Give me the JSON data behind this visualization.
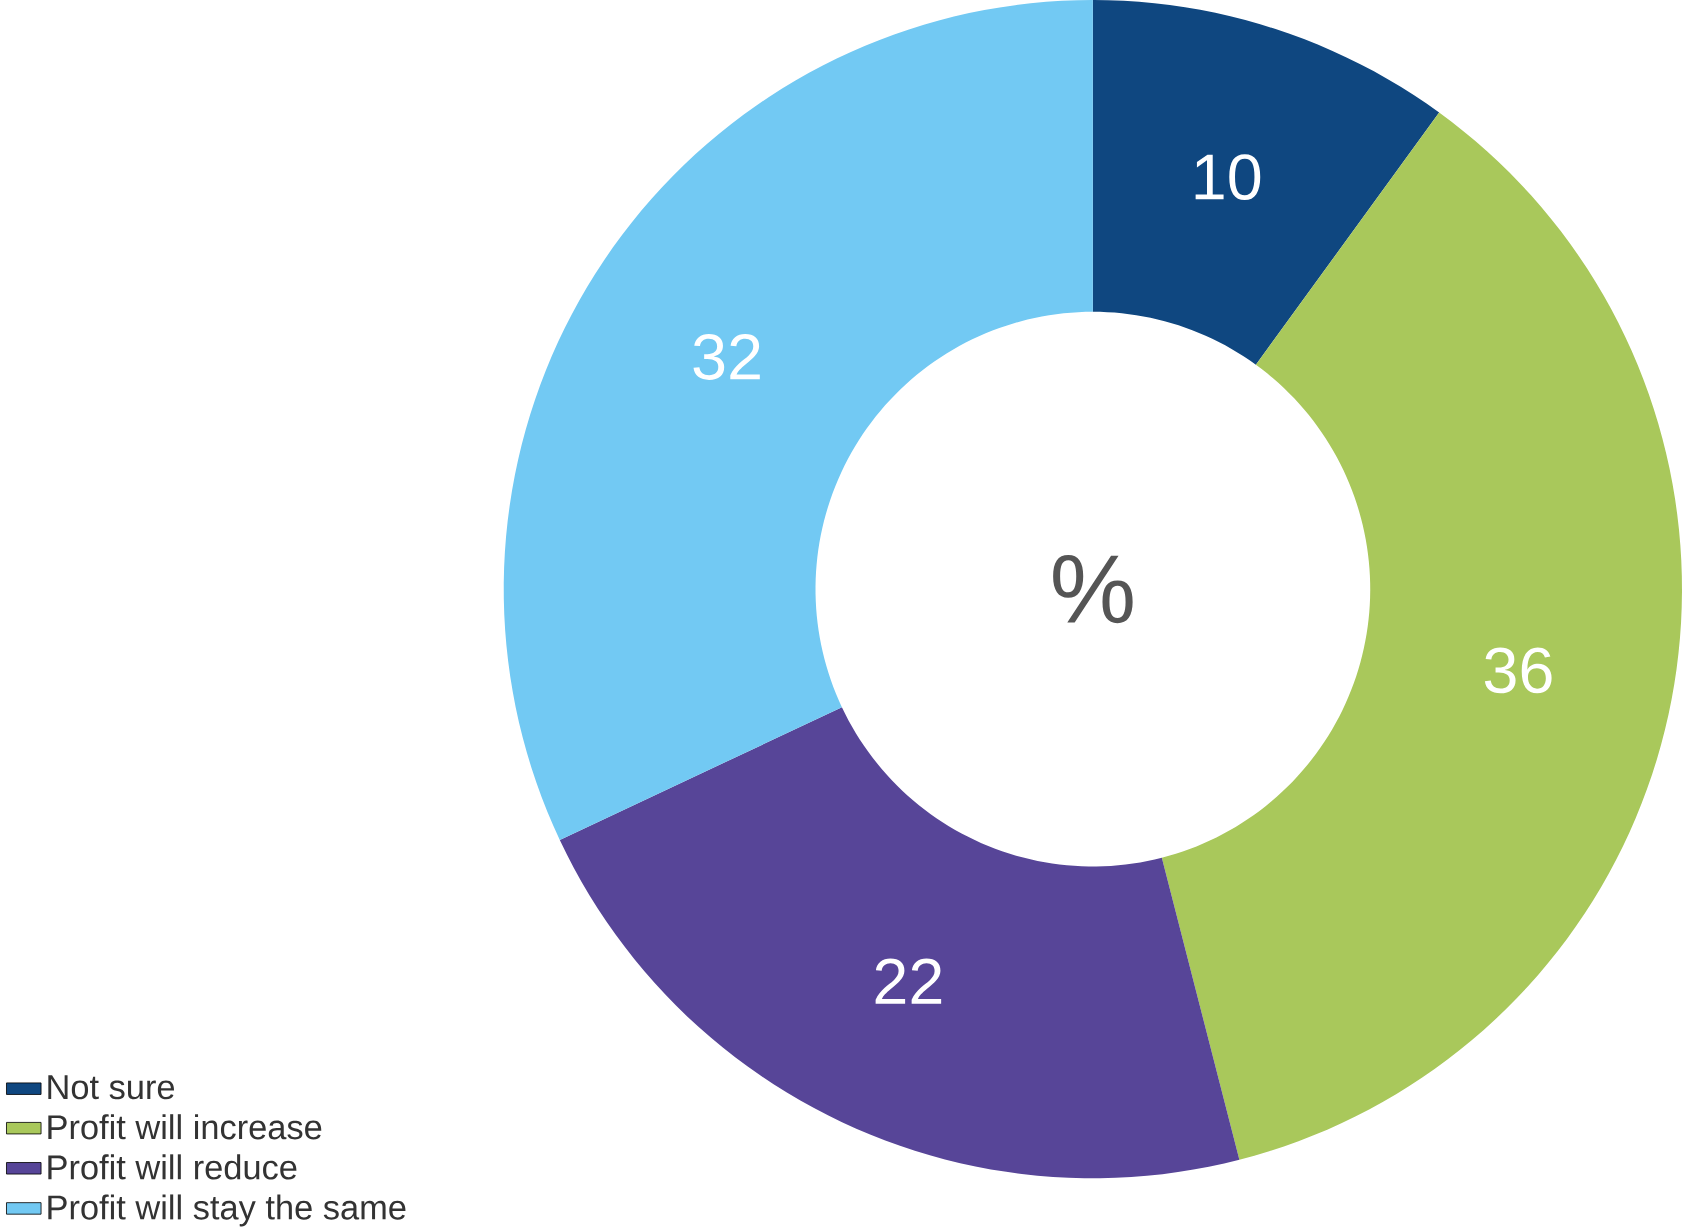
{
  "chart_data": {
    "type": "donut",
    "categories": [
      "Not sure",
      "Profit will increase",
      "Profit will reduce",
      "Profit will stay the same"
    ],
    "values": [
      10,
      36,
      22,
      32
    ],
    "colors": [
      "#0f4780",
      "#a9c85b",
      "#574598",
      "#72c9f3"
    ],
    "data_labels": true,
    "legend": "bottom left",
    "annotations": [
      "%"
    ]
  }
}
